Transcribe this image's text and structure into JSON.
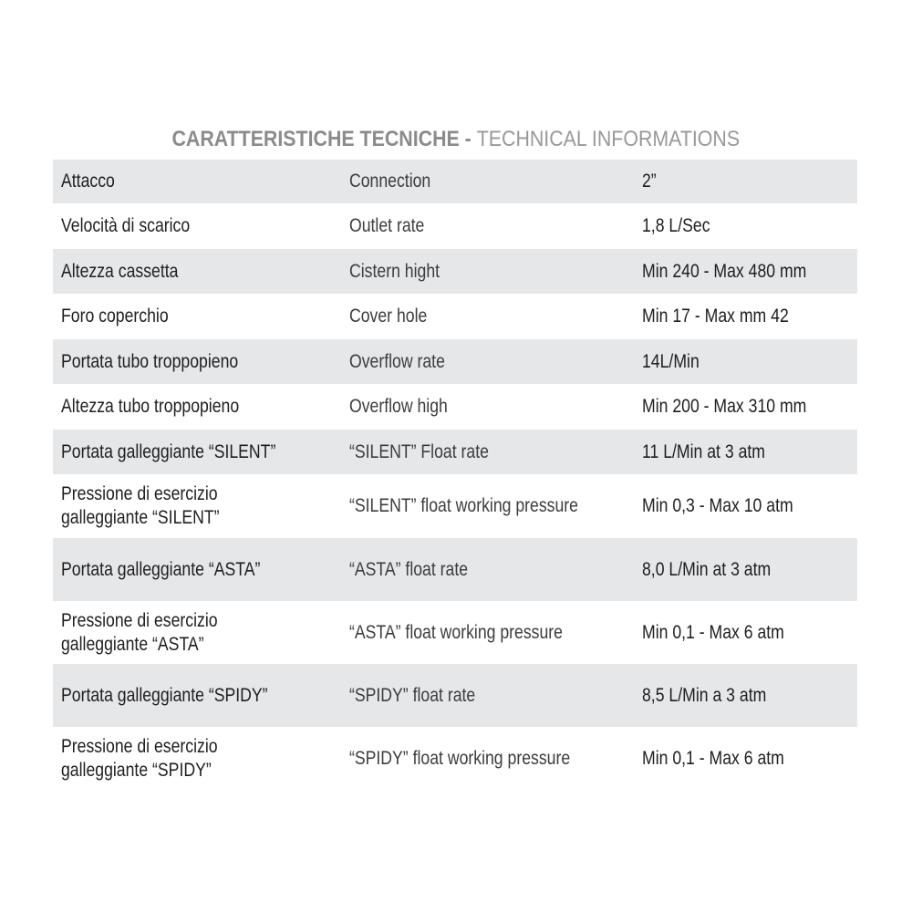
{
  "title": {
    "italian": "CARATTERISTICHE TECNICHE - ",
    "english": "TECHNICAL INFORMATIONS"
  },
  "colors": {
    "row_shade": "#e6e7e9",
    "title": "#8a8b8d",
    "text": "#1e1e1e"
  },
  "rows": [
    {
      "it": "Attacco",
      "en": "Connection",
      "value": "2”"
    },
    {
      "it": "Velocità di scarico",
      "en": "Outlet rate",
      "value": "1,8 L/Sec"
    },
    {
      "it": "Altezza cassetta",
      "en": "Cistern hight",
      "value": "Min 240 - Max 480 mm"
    },
    {
      "it": "Foro coperchio",
      "en": "Cover hole",
      "value": "Min 17 - Max mm 42"
    },
    {
      "it": "Portata tubo troppopieno",
      "en": "Overflow rate",
      "value": "14L/Min"
    },
    {
      "it": "Altezza tubo troppopieno",
      "en": "Overflow high",
      "value": "Min 200 - Max 310 mm"
    },
    {
      "it": "Portata galleggiante “SILENT”",
      "en": "“SILENT” Float rate",
      "value": "11 L/Min at 3 atm"
    },
    {
      "it": "Pressione di esercizio\ngalleggiante “SILENT”",
      "en": "“SILENT” float working pressure",
      "value": "Min 0,3 - Max 10 atm"
    },
    {
      "it": "Portata galleggiante “ASTA”",
      "en": "“ASTA” float rate",
      "value": "8,0 L/Min at 3 atm"
    },
    {
      "it": "Pressione di esercizio\ngalleggiante “ASTA”",
      "en": "“ASTA” float working pressure",
      "value": "Min 0,1 - Max 6 atm"
    },
    {
      "it": "Portata galleggiante “SPIDY”",
      "en": "“SPIDY” float rate",
      "value": "8,5 L/Min a 3 atm"
    },
    {
      "it": "Pressione di esercizio\ngalleggiante “SPIDY”",
      "en": "“SPIDY” float working pressure",
      "value": "Min 0,1 - Max 6 atm"
    }
  ]
}
